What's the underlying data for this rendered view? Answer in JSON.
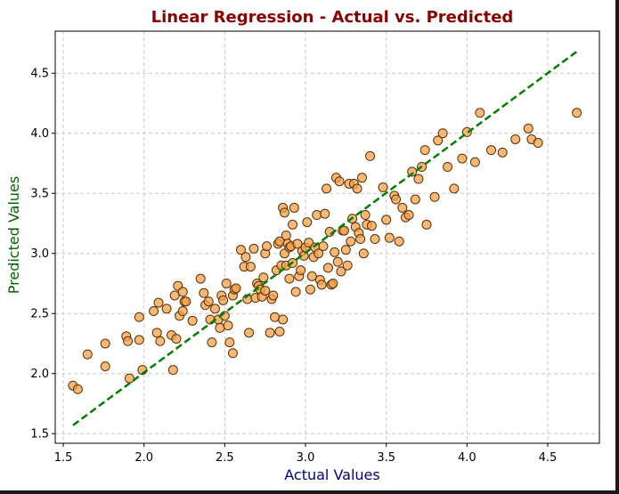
{
  "chart_data": {
    "type": "scatter",
    "title": "Linear Regression - Actual vs. Predicted",
    "xlabel": "Actual Values",
    "ylabel": "Predicted Values",
    "xlim": [
      1.45,
      4.82
    ],
    "ylim": [
      1.42,
      4.85
    ],
    "xticks": [
      "1.5",
      "2.0",
      "2.5",
      "3.0",
      "3.5",
      "4.0",
      "4.5"
    ],
    "yticks": [
      "1.5",
      "2.0",
      "2.5",
      "3.0",
      "3.5",
      "4.0",
      "4.5"
    ],
    "grid": true,
    "colors": {
      "title": "#8b0000",
      "xlabel": "#000080",
      "ylabel": "#006400",
      "points": "#f5a04a",
      "point_edge": "#5a3000",
      "line": "#008000",
      "grid": "#c8c8c8"
    },
    "reference_line": {
      "x": [
        1.56,
        4.68
      ],
      "y": [
        1.57,
        4.68
      ],
      "style": "dashed"
    },
    "points": {
      "x": [
        1.56,
        1.59,
        1.65,
        1.76,
        1.76,
        1.89,
        1.9,
        1.91,
        1.97,
        1.97,
        1.99,
        2.06,
        2.08,
        2.09,
        2.1,
        2.14,
        2.17,
        2.18,
        2.19,
        2.2,
        2.21,
        2.22,
        2.24,
        2.24,
        2.25,
        2.26,
        2.3,
        2.35,
        2.37,
        2.38,
        2.4,
        2.41,
        2.42,
        2.44,
        2.46,
        2.47,
        2.48,
        2.49,
        2.5,
        2.51,
        2.52,
        2.53,
        2.55,
        2.55,
        2.56,
        2.57,
        2.6,
        2.62,
        2.63,
        2.64,
        2.65,
        2.66,
        2.68,
        2.69,
        2.7,
        2.71,
        2.72,
        2.73,
        2.74,
        2.75,
        2.75,
        2.76,
        2.78,
        2.79,
        2.8,
        2.81,
        2.82,
        2.83,
        2.84,
        2.84,
        2.85,
        2.86,
        2.86,
        2.87,
        2.87,
        2.88,
        2.88,
        2.89,
        2.9,
        2.9,
        2.91,
        2.92,
        2.92,
        2.93,
        2.94,
        2.95,
        2.96,
        2.97,
        2.98,
        2.99,
        3.0,
        3.01,
        3.02,
        3.03,
        3.04,
        3.05,
        3.06,
        3.07,
        3.08,
        3.09,
        3.1,
        3.11,
        3.12,
        3.13,
        3.14,
        3.15,
        3.16,
        3.17,
        3.18,
        3.19,
        3.2,
        3.21,
        3.22,
        3.23,
        3.24,
        3.25,
        3.26,
        3.27,
        3.28,
        3.29,
        3.3,
        3.31,
        3.32,
        3.33,
        3.34,
        3.35,
        3.36,
        3.37,
        3.38,
        3.4,
        3.41,
        3.43,
        3.48,
        3.5,
        3.52,
        3.55,
        3.56,
        3.58,
        3.6,
        3.62,
        3.64,
        3.66,
        3.68,
        3.7,
        3.72,
        3.74,
        3.75,
        3.8,
        3.82,
        3.85,
        3.88,
        3.92,
        3.97,
        4.0,
        4.05,
        4.08,
        4.15,
        4.22,
        4.3,
        4.38,
        4.4,
        4.44,
        4.68
      ],
      "y": [
        1.9,
        1.87,
        2.16,
        2.25,
        2.06,
        2.31,
        2.27,
        1.96,
        2.28,
        2.47,
        2.03,
        2.52,
        2.34,
        2.59,
        2.27,
        2.54,
        2.32,
        2.03,
        2.65,
        2.29,
        2.73,
        2.48,
        2.68,
        2.52,
        2.6,
        2.6,
        2.44,
        2.79,
        2.67,
        2.57,
        2.6,
        2.45,
        2.26,
        2.54,
        2.45,
        2.38,
        2.65,
        2.61,
        2.48,
        2.75,
        2.4,
        2.26,
        2.65,
        2.17,
        2.7,
        2.71,
        3.03,
        2.89,
        2.97,
        2.62,
        2.34,
        2.89,
        3.04,
        2.63,
        2.75,
        2.73,
        2.7,
        2.64,
        2.8,
        2.69,
        3.0,
        3.06,
        2.34,
        2.62,
        2.65,
        2.47,
        2.86,
        3.08,
        3.1,
        2.35,
        2.9,
        3.38,
        2.45,
        3.0,
        3.34,
        2.9,
        3.15,
        3.08,
        3.05,
        2.79,
        3.06,
        3.24,
        2.92,
        3.38,
        2.68,
        3.08,
        2.81,
        2.86,
        3.02,
        2.98,
        3.05,
        3.26,
        3.09,
        2.7,
        2.81,
        2.97,
        3.05,
        3.32,
        3.0,
        2.78,
        2.74,
        3.06,
        3.33,
        3.54,
        2.88,
        3.18,
        2.74,
        2.75,
        3.01,
        3.63,
        2.93,
        3.6,
        2.85,
        3.19,
        3.19,
        3.03,
        2.9,
        3.58,
        3.1,
        3.29,
        3.58,
        3.22,
        3.54,
        3.17,
        3.12,
        3.63,
        3.0,
        3.32,
        3.24,
        3.81,
        3.23,
        3.12,
        3.55,
        3.28,
        3.13,
        3.48,
        3.45,
        3.1,
        3.38,
        3.3,
        3.32,
        3.68,
        3.45,
        3.62,
        3.72,
        3.86,
        3.24,
        3.47,
        3.94,
        4.0,
        3.72,
        3.54,
        3.79,
        4.01,
        3.76,
        4.17,
        3.86,
        3.84,
        3.95,
        4.04,
        3.95,
        3.92,
        4.17
      ]
    }
  }
}
